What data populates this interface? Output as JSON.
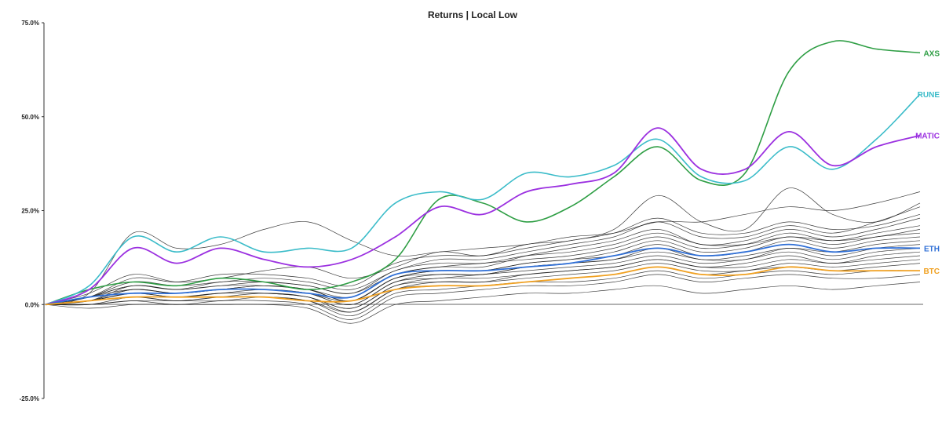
{
  "chart_data": {
    "type": "line",
    "title": "Returns | Local Low",
    "xlabel": "",
    "ylabel": "",
    "ylim": [
      -25,
      75
    ],
    "y_ticks": [
      {
        "value": 75,
        "label": "75.0%"
      },
      {
        "value": 50,
        "label": "50.0%"
      },
      {
        "value": 25,
        "label": "25.0%"
      },
      {
        "value": 0,
        "label": "0.0%"
      },
      {
        "value": -25,
        "label": "-25.0%"
      }
    ],
    "grid": false,
    "legend": "inline labels at right end of lines",
    "x_points": 21,
    "series": [
      {
        "name": "AXS",
        "color": "#2e9e44",
        "width": 1.6,
        "values": [
          0,
          4,
          6,
          5,
          7,
          6,
          4,
          6,
          12,
          28,
          27,
          22,
          26,
          34,
          42,
          33,
          35,
          62,
          70,
          68,
          67
        ]
      },
      {
        "name": "RUNE",
        "color": "#3bbcc9",
        "width": 1.6,
        "values": [
          0,
          5,
          18,
          14,
          18,
          14,
          15,
          15,
          27,
          30,
          28,
          35,
          34,
          37,
          44,
          34,
          33,
          42,
          36,
          44,
          56
        ]
      },
      {
        "name": "MATIC",
        "color": "#9b30e0",
        "width": 1.8,
        "values": [
          0,
          4,
          15,
          11,
          15,
          12,
          10,
          12,
          18,
          26,
          24,
          30,
          32,
          35,
          47,
          36,
          36,
          46,
          37,
          42,
          45
        ]
      },
      {
        "name": "ETH",
        "color": "#2f6fd6",
        "width": 1.8,
        "values": [
          0,
          2,
          3,
          3,
          4,
          4,
          3,
          2,
          8,
          9,
          9,
          10,
          11,
          13,
          15,
          13,
          14,
          16,
          14,
          15,
          15
        ]
      },
      {
        "name": "BTC",
        "color": "#f0a020",
        "width": 1.8,
        "values": [
          0,
          1,
          2,
          2,
          2,
          2,
          1,
          1,
          4,
          5,
          5,
          6,
          7,
          8,
          10,
          8,
          8,
          10,
          9,
          9,
          9
        ]
      }
    ],
    "others": [
      {
        "values": [
          0,
          3,
          19,
          15,
          16,
          20,
          22,
          17,
          13,
          14,
          15,
          16,
          18,
          19,
          22,
          22,
          24,
          26,
          25,
          27,
          30
        ]
      },
      {
        "values": [
          0,
          3,
          8,
          6,
          7,
          9,
          10,
          7,
          10,
          14,
          13,
          16,
          17,
          20,
          29,
          22,
          20,
          31,
          24,
          22,
          27
        ]
      },
      {
        "values": [
          0,
          2,
          6,
          5,
          6,
          7,
          6,
          4,
          9,
          12,
          12,
          14,
          16,
          18,
          22,
          18,
          18,
          21,
          19,
          22,
          26
        ]
      },
      {
        "values": [
          0,
          2,
          5,
          4,
          6,
          6,
          5,
          3,
          8,
          10,
          10,
          13,
          15,
          17,
          20,
          16,
          17,
          20,
          18,
          20,
          23
        ]
      },
      {
        "values": [
          0,
          2,
          5,
          4,
          5,
          5,
          4,
          2,
          8,
          10,
          11,
          12,
          13,
          15,
          18,
          15,
          16,
          19,
          17,
          19,
          21
        ]
      },
      {
        "values": [
          0,
          1,
          4,
          3,
          4,
          5,
          4,
          1,
          7,
          9,
          9,
          11,
          12,
          14,
          17,
          14,
          15,
          18,
          16,
          18,
          19
        ]
      },
      {
        "values": [
          0,
          2,
          4,
          3,
          4,
          5,
          4,
          1,
          7,
          9,
          9,
          11,
          12,
          13,
          16,
          13,
          14,
          17,
          15,
          17,
          18
        ]
      },
      {
        "values": [
          0,
          1,
          4,
          3,
          4,
          4,
          3,
          1,
          7,
          8,
          8,
          10,
          11,
          12,
          15,
          12,
          13,
          15,
          14,
          16,
          17
        ]
      },
      {
        "values": [
          0,
          1,
          3,
          3,
          4,
          4,
          3,
          0,
          6,
          8,
          8,
          10,
          11,
          12,
          14,
          12,
          12,
          15,
          13,
          15,
          16
        ]
      },
      {
        "values": [
          0,
          1,
          3,
          2,
          3,
          4,
          3,
          0,
          6,
          7,
          8,
          9,
          10,
          11,
          13,
          11,
          12,
          14,
          12,
          14,
          15
        ]
      },
      {
        "values": [
          0,
          1,
          3,
          2,
          3,
          3,
          2,
          -1,
          5,
          7,
          7,
          8,
          9,
          10,
          12,
          10,
          11,
          13,
          11,
          13,
          14
        ]
      },
      {
        "values": [
          0,
          1,
          2,
          2,
          3,
          3,
          2,
          -1,
          5,
          6,
          6,
          8,
          9,
          10,
          12,
          10,
          10,
          12,
          11,
          12,
          13
        ]
      },
      {
        "values": [
          0,
          1,
          2,
          1,
          2,
          3,
          2,
          -2,
          4,
          6,
          6,
          7,
          8,
          9,
          11,
          9,
          9,
          11,
          10,
          11,
          12
        ]
      },
      {
        "values": [
          0,
          0,
          2,
          1,
          2,
          2,
          1,
          -2,
          4,
          5,
          5,
          6,
          7,
          8,
          10,
          8,
          9,
          10,
          9,
          10,
          11
        ]
      },
      {
        "values": [
          0,
          0,
          1,
          1,
          1,
          2,
          1,
          -3,
          3,
          4,
          5,
          6,
          6,
          7,
          9,
          7,
          8,
          9,
          8,
          9,
          9
        ]
      },
      {
        "values": [
          0,
          0,
          1,
          0,
          1,
          1,
          0,
          -4,
          2,
          3,
          4,
          5,
          5,
          6,
          8,
          6,
          7,
          8,
          7,
          7,
          8
        ]
      },
      {
        "values": [
          0,
          -1,
          0,
          0,
          0,
          0,
          -1,
          -5,
          0,
          1,
          2,
          3,
          3,
          4,
          5,
          3,
          4,
          5,
          4,
          5,
          6
        ]
      },
      {
        "values": [
          0,
          2,
          7,
          6,
          8,
          8,
          7,
          5,
          11,
          13,
          13,
          15,
          17,
          19,
          23,
          19,
          19,
          22,
          20,
          21,
          24
        ]
      },
      {
        "values": [
          0,
          1,
          5,
          4,
          5,
          6,
          5,
          3,
          9,
          11,
          11,
          13,
          14,
          16,
          19,
          16,
          16,
          18,
          17,
          18,
          20
        ]
      }
    ]
  }
}
